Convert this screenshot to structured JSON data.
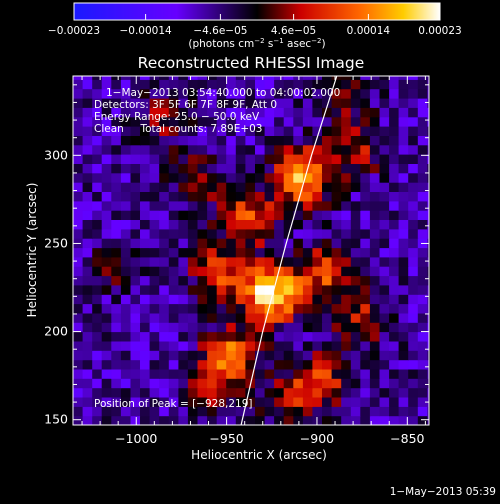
{
  "chart_data": {
    "type": "heatmap",
    "title": "Reconstructed RHESSI Image",
    "xlabel": "Heliocentric X (arcsec)",
    "ylabel": "Heliocentric Y (arcsec)",
    "xlim": [
      -1035,
      -838
    ],
    "ylim": [
      147,
      345
    ],
    "xticks": [
      -1000,
      -950,
      -900,
      -850
    ],
    "yticks": [
      150,
      200,
      250,
      300
    ],
    "xtick_labels": [
      "−1000",
      "−950",
      "−900",
      "−850"
    ],
    "ytick_labels": [
      "150",
      "200",
      "250",
      "300"
    ],
    "colorbar": {
      "range": [
        -0.00023,
        0.00023
      ],
      "ticks": [
        -0.00023,
        -0.00014,
        -4.6e-05,
        4.6e-05,
        0.00014,
        0.00023
      ],
      "tick_labels": [
        "−0.00023",
        "−0.00014",
        "−4.6e−05",
        "4.6e−05",
        "0.00014",
        "0.00023"
      ],
      "unit_parts": [
        "(photons cm",
        "−2",
        " s",
        "−1",
        " asec",
        "−2",
        ")"
      ]
    },
    "annotations": {
      "time": "1−May−2013 03:54:40.000 to 04:00:02.000",
      "detectors": "Detectors: 3F 5F 6F 7F 8F 9F, Att 0",
      "energy": "Energy Range: 25.0 − 50.0 keV",
      "clean": "Clean     Total counts: 7.89E+03",
      "peak": "Position of Peak = [−928,219]"
    },
    "peak": [
      -928,
      219
    ],
    "limb_line": [
      [
        -942,
        147
      ],
      [
        -930,
        200
      ],
      [
        -917,
        250
      ],
      [
        -903,
        300
      ],
      [
        -889,
        345
      ]
    ],
    "sources": [
      {
        "x": -928,
        "y": 219,
        "amp": 1.0
      },
      {
        "x": -910,
        "y": 286,
        "amp": 0.85
      },
      {
        "x": -940,
        "y": 262,
        "amp": 0.6
      },
      {
        "x": -898,
        "y": 232,
        "amp": 0.55
      },
      {
        "x": -950,
        "y": 185,
        "amp": 0.6
      },
      {
        "x": -957,
        "y": 232,
        "amp": 0.5
      },
      {
        "x": -900,
        "y": 170,
        "amp": 0.45
      },
      {
        "x": -880,
        "y": 300,
        "amp": 0.35
      },
      {
        "x": -878,
        "y": 205,
        "amp": 0.4
      },
      {
        "x": -970,
        "y": 283,
        "amp": 0.3
      },
      {
        "x": -988,
        "y": 318,
        "amp": 0.3
      },
      {
        "x": -890,
        "y": 330,
        "amp": 0.3
      },
      {
        "x": -1015,
        "y": 232,
        "amp": 0.2
      },
      {
        "x": -963,
        "y": 165,
        "amp": 0.35
      },
      {
        "x": -918,
        "y": 158,
        "amp": 0.35
      }
    ]
  },
  "footer": {
    "timestamp": "1−May−2013 05:39"
  }
}
